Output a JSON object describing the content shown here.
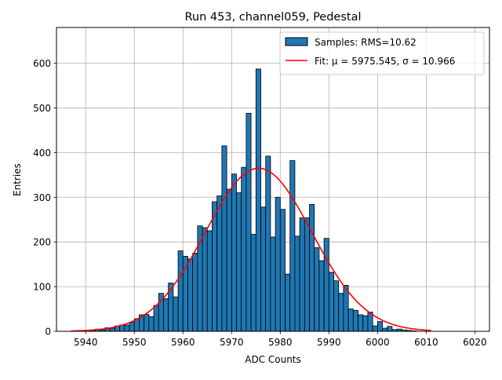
{
  "chart_data": {
    "type": "bar",
    "title": "Run 453, channel059, Pedestal",
    "xlabel": "ADC Counts",
    "ylabel": "Entries",
    "xlim": [
      5934,
      6023
    ],
    "ylim": [
      0,
      680
    ],
    "xticks": [
      5940,
      5950,
      5960,
      5970,
      5980,
      5990,
      6000,
      6010,
      6020
    ],
    "yticks": [
      0,
      100,
      200,
      300,
      400,
      500,
      600
    ],
    "grid": true,
    "legend_position": "top-right",
    "colors": {
      "bars": "#1f77b4",
      "bar_edge": "#000000",
      "fit": "#ff0000",
      "grid": "#b0b0b0"
    },
    "series": [
      {
        "name": "Samples: RMS=10.62",
        "type": "histogram",
        "bin_width": 1,
        "bin_start": 5940,
        "values": [
          1,
          2,
          5,
          3,
          8,
          7,
          12,
          14,
          14,
          20,
          28,
          37,
          38,
          33,
          58,
          85,
          73,
          108,
          77,
          180,
          168,
          162,
          175,
          236,
          232,
          225,
          290,
          303,
          415,
          318,
          352,
          310,
          367,
          488,
          217,
          587,
          278,
          392,
          211,
          300,
          273,
          128,
          382,
          213,
          254,
          254,
          284,
          187,
          158,
          208,
          132,
          113,
          85,
          103,
          50,
          47,
          37,
          35,
          43,
          12,
          22,
          7,
          11,
          4,
          5,
          3,
          2,
          1
        ]
      },
      {
        "name": "Fit: μ = 5975.545, σ = 10.966",
        "type": "line",
        "function": "gaussian",
        "mu": 5975.545,
        "sigma": 10.966,
        "amplitude": 365,
        "x_range": [
          5937,
          6011
        ]
      }
    ]
  }
}
